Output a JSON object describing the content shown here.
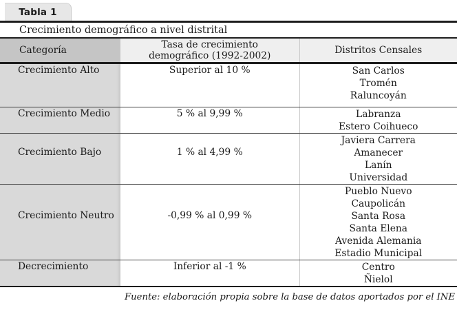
{
  "tab": {
    "label": "Tabla 1"
  },
  "table": {
    "title": "Crecimiento demográfico a nivel distrital",
    "headers": {
      "category": "Categoría",
      "rate": "Tasa de crecimiento\ndemográfico (1992-2002)",
      "districts": "Distritos Censales"
    },
    "rows": [
      {
        "category": "Crecimiento Alto",
        "rate": "Superior al 10 %",
        "districts": [
          "San Carlos",
          "Tromén",
          "Raluncoyán"
        ]
      },
      {
        "category": "Crecimiento Medio",
        "rate": "5 % al 9,99 %",
        "districts": [
          "Labranza",
          "Estero Coihueco"
        ]
      },
      {
        "category": "Crecimiento Bajo",
        "rate": "1 % al 4,99 %",
        "districts": [
          "Javiera Carrera",
          "Amanecer",
          "Lanín",
          "Universidad"
        ]
      },
      {
        "category": "Crecimiento Neutro",
        "rate": "-0,99 % al 0,99 %",
        "districts": [
          "Pueblo Nuevo",
          "Caupolicán",
          "Santa Rosa",
          "Santa Elena",
          "Avenida Alemania",
          "Estadio Municipal"
        ]
      },
      {
        "category": "Decrecimiento",
        "rate": "Inferior al -1 %",
        "districts": [
          "Centro",
          "Ñielol"
        ]
      }
    ]
  },
  "footer": {
    "source_note": "Fuente: elaboración propia sobre la base de datos aportados por el INE"
  },
  "colors": {
    "rule_dark": "#1d1d1d",
    "tab_bg": "#e7e7e7",
    "header_category_bg": "#c5c5c5",
    "header_bg": "#efefef",
    "category_column_bg": "#d9d9d9",
    "column_divider": "#c8c8c8"
  }
}
